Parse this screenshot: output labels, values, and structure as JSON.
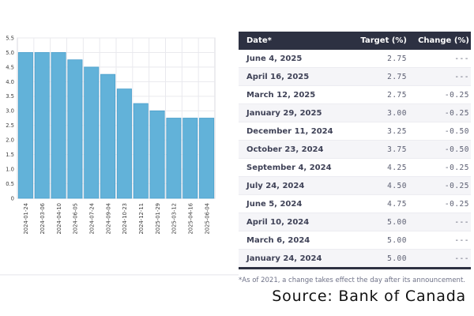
{
  "chart_data": {
    "type": "bar",
    "title": "",
    "xlabel": "",
    "ylabel": "",
    "x": [
      "2024-01-24",
      "2024-03-06",
      "2024-04-10",
      "2024-06-05",
      "2024-07-24",
      "2024-09-04",
      "2024-10-23",
      "2024-12-11",
      "2025-01-29",
      "2025-03-12",
      "2025-04-16",
      "2025-06-04"
    ],
    "values": [
      5.0,
      5.0,
      5.0,
      4.75,
      4.5,
      4.25,
      3.75,
      3.25,
      3.0,
      2.75,
      2.75,
      2.75
    ],
    "ylim": [
      0,
      5.5
    ],
    "ytick_step": 0.5,
    "grid": true,
    "legend": "none",
    "bar_color": "#62b2d9",
    "bar_border_color": "#4da0cc",
    "grid_color": "#e9e9ee",
    "plot_border_color": "#d9d9df",
    "tick_label_color": "#3d3d3d"
  },
  "table": {
    "columns": [
      "Date*",
      "Target (%)",
      "Change (%)"
    ],
    "rows": [
      [
        "June 4, 2025",
        "2.75",
        "---"
      ],
      [
        "April 16, 2025",
        "2.75",
        "---"
      ],
      [
        "March 12, 2025",
        "2.75",
        "-0.25"
      ],
      [
        "January 29, 2025",
        "3.00",
        "-0.25"
      ],
      [
        "December 11, 2024",
        "3.25",
        "-0.50"
      ],
      [
        "October 23, 2024",
        "3.75",
        "-0.50"
      ],
      [
        "September 4, 2024",
        "4.25",
        "-0.25"
      ],
      [
        "July 24, 2024",
        "4.50",
        "-0.25"
      ],
      [
        "June 5, 2024",
        "4.75",
        "-0.25"
      ],
      [
        "April 10, 2024",
        "5.00",
        "---"
      ],
      [
        "March 6, 2024",
        "5.00",
        "---"
      ],
      [
        "January 24, 2024",
        "5.00",
        "---"
      ]
    ],
    "header_bg": "#2d3142"
  },
  "footnote": "*As of 2021, a change takes effect the day after its announcement.",
  "source_caption": "Source: Bank of Canada"
}
